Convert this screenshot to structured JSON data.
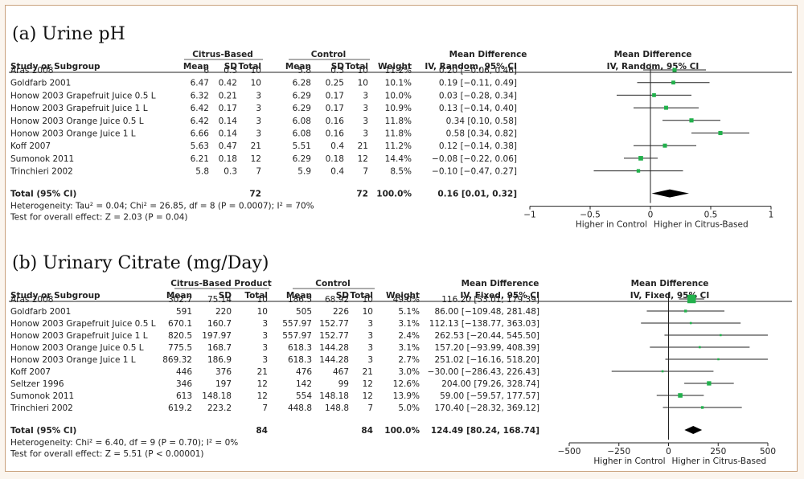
{
  "chart_data": [
    {
      "type": "forest",
      "title": "(a) Urine pH",
      "header": {
        "study": "Study or Subgroup",
        "group1": "Citrus-Based",
        "group2": "Control",
        "mean": "Mean",
        "sd": "SD",
        "total": "Total",
        "weight": "Weight",
        "md_title": "Mean Difference",
        "md_method": "IV, Random, 95% CI",
        "plot_title": "Mean Difference",
        "plot_method": "IV, Random, 95% CI"
      },
      "studies": [
        {
          "name": "Aras 2008",
          "m1": "6",
          "sd1": "0.3",
          "n1": "10",
          "m2": "5.8",
          "sd2": "0.3",
          "n2": "10",
          "weight": "11.2%",
          "ci": "0.20 [−0.06, 0.46]",
          "est": 0.2,
          "lo": -0.06,
          "hi": 0.46,
          "w": 11.2
        },
        {
          "name": "Goldfarb 2001",
          "m1": "6.47",
          "sd1": "0.42",
          "n1": "10",
          "m2": "6.28",
          "sd2": "0.25",
          "n2": "10",
          "weight": "10.1%",
          "ci": "0.19 [−0.11, 0.49]",
          "est": 0.19,
          "lo": -0.11,
          "hi": 0.49,
          "w": 10.1
        },
        {
          "name": "Honow 2003 Grapefruit Juice 0.5 L",
          "m1": "6.32",
          "sd1": "0.21",
          "n1": "3",
          "m2": "6.29",
          "sd2": "0.17",
          "n2": "3",
          "weight": "10.0%",
          "ci": "0.03 [−0.28, 0.34]",
          "est": 0.03,
          "lo": -0.28,
          "hi": 0.34,
          "w": 10.0
        },
        {
          "name": "Honow 2003 Grapefruit Juice 1 L",
          "m1": "6.42",
          "sd1": "0.17",
          "n1": "3",
          "m2": "6.29",
          "sd2": "0.17",
          "n2": "3",
          "weight": "10.9%",
          "ci": "0.13 [−0.14, 0.40]",
          "est": 0.13,
          "lo": -0.14,
          "hi": 0.4,
          "w": 10.9
        },
        {
          "name": "Honow 2003 Orange Juice 0.5 L",
          "m1": "6.42",
          "sd1": "0.14",
          "n1": "3",
          "m2": "6.08",
          "sd2": "0.16",
          "n2": "3",
          "weight": "11.8%",
          "ci": "0.34 [0.10, 0.58]",
          "est": 0.34,
          "lo": 0.1,
          "hi": 0.58,
          "w": 11.8
        },
        {
          "name": "Honow 2003 Orange Juice 1 L",
          "m1": "6.66",
          "sd1": "0.14",
          "n1": "3",
          "m2": "6.08",
          "sd2": "0.16",
          "n2": "3",
          "weight": "11.8%",
          "ci": "0.58 [0.34, 0.82]",
          "est": 0.58,
          "lo": 0.34,
          "hi": 0.82,
          "w": 11.8
        },
        {
          "name": "Koff 2007",
          "m1": "5.63",
          "sd1": "0.47",
          "n1": "21",
          "m2": "5.51",
          "sd2": "0.4",
          "n2": "21",
          "weight": "11.2%",
          "ci": "0.12 [−0.14, 0.38]",
          "est": 0.12,
          "lo": -0.14,
          "hi": 0.38,
          "w": 11.2
        },
        {
          "name": "Sumonok 2011",
          "m1": "6.21",
          "sd1": "0.18",
          "n1": "12",
          "m2": "6.29",
          "sd2": "0.18",
          "n2": "12",
          "weight": "14.4%",
          "ci": "−0.08 [−0.22, 0.06]",
          "est": -0.08,
          "lo": -0.22,
          "hi": 0.06,
          "w": 14.4
        },
        {
          "name": "Trinchieri 2002",
          "m1": "5.8",
          "sd1": "0.3",
          "n1": "7",
          "m2": "5.9",
          "sd2": "0.4",
          "n2": "7",
          "weight": "8.5%",
          "ci": "−0.10 [−0.47, 0.27]",
          "est": -0.1,
          "lo": -0.47,
          "hi": 0.27,
          "w": 8.5
        }
      ],
      "total": {
        "label": "Total (95% CI)",
        "n1": "72",
        "n2": "72",
        "weight": "100.0%",
        "ci": "0.16 [0.01, 0.32]",
        "est": 0.16,
        "lo": 0.01,
        "hi": 0.32
      },
      "heterogeneity": "Heterogeneity: Tau² = 0.04; Chi² = 26.85, df = 8 (P = 0.0007); I² = 70%",
      "overall_effect": "Test for overall effect: Z = 2.03 (P = 0.04)",
      "xlim": [
        -1,
        1
      ],
      "ticks": [
        -1,
        -0.5,
        0,
        0.5,
        1
      ],
      "tick_labels": [
        "−1",
        "−0.5",
        "0",
        "0.5",
        "1"
      ],
      "favours_left": "Higher in Control",
      "favours_right": "Higher in Citrus-Based"
    },
    {
      "type": "forest",
      "title": "(b) Urinary Citrate (mg/Day)",
      "header": {
        "study": "Study or Subgroup",
        "group1": "Citrus-Based Product",
        "group2": "Control",
        "mean": "Mean",
        "sd": "SD",
        "total": "Total",
        "weight": "Weight",
        "md_title": "Mean Difference",
        "md_method": "IV, Fixed, 95% CI",
        "plot_title": "Mean Difference",
        "plot_method": "IV, Fixed, 95% CI"
      },
      "studies": [
        {
          "name": "Aras 2008",
          "m1": "302.7",
          "sd1": "75.14",
          "n1": "10",
          "m2": "186.5",
          "sd2": "68.92",
          "n2": "10",
          "weight": "49.0%",
          "ci": "116.20 [53.01, 179.39]",
          "est": 116.2,
          "lo": 53.01,
          "hi": 179.39,
          "w": 49.0
        },
        {
          "name": "Goldfarb 2001",
          "m1": "591",
          "sd1": "220",
          "n1": "10",
          "m2": "505",
          "sd2": "226",
          "n2": "10",
          "weight": "5.1%",
          "ci": "86.00 [−109.48, 281.48]",
          "est": 86.0,
          "lo": -109.48,
          "hi": 281.48,
          "w": 5.1
        },
        {
          "name": "Honow 2003 Grapefruit Juice 0.5 L",
          "m1": "670.1",
          "sd1": "160.7",
          "n1": "3",
          "m2": "557.97",
          "sd2": "152.77",
          "n2": "3",
          "weight": "3.1%",
          "ci": "112.13 [−138.77, 363.03]",
          "est": 112.13,
          "lo": -138.77,
          "hi": 363.03,
          "w": 3.1
        },
        {
          "name": "Honow 2003 Grapefruit Juice 1 L",
          "m1": "820.5",
          "sd1": "197.97",
          "n1": "3",
          "m2": "557.97",
          "sd2": "152.77",
          "n2": "3",
          "weight": "2.4%",
          "ci": "262.53 [−20.44, 545.50]",
          "est": 262.53,
          "lo": -20.44,
          "hi": 545.5,
          "w": 2.4
        },
        {
          "name": "Honow 2003 Orange Juice 0.5 L",
          "m1": "775.5",
          "sd1": "168.7",
          "n1": "3",
          "m2": "618.3",
          "sd2": "144.28",
          "n2": "3",
          "weight": "3.1%",
          "ci": "157.20 [−93.99, 408.39]",
          "est": 157.2,
          "lo": -93.99,
          "hi": 408.39,
          "w": 3.1
        },
        {
          "name": "Honow 2003 Orange Juice 1 L",
          "m1": "869.32",
          "sd1": "186.9",
          "n1": "3",
          "m2": "618.3",
          "sd2": "144.28",
          "n2": "3",
          "weight": "2.7%",
          "ci": "251.02 [−16.16, 518.20]",
          "est": 251.02,
          "lo": -16.16,
          "hi": 518.2,
          "w": 2.7
        },
        {
          "name": "Koff 2007",
          "m1": "446",
          "sd1": "376",
          "n1": "21",
          "m2": "476",
          "sd2": "467",
          "n2": "21",
          "weight": "3.0%",
          "ci": "−30.00 [−286.43, 226.43]",
          "est": -30.0,
          "lo": -286.43,
          "hi": 226.43,
          "w": 3.0
        },
        {
          "name": "Seltzer 1996",
          "m1": "346",
          "sd1": "197",
          "n1": "12",
          "m2": "142",
          "sd2": "99",
          "n2": "12",
          "weight": "12.6%",
          "ci": "204.00 [79.26, 328.74]",
          "est": 204.0,
          "lo": 79.26,
          "hi": 328.74,
          "w": 12.6
        },
        {
          "name": "Sumonok 2011",
          "m1": "613",
          "sd1": "148.18",
          "n1": "12",
          "m2": "554",
          "sd2": "148.18",
          "n2": "12",
          "weight": "13.9%",
          "ci": "59.00 [−59.57, 177.57]",
          "est": 59.0,
          "lo": -59.57,
          "hi": 177.57,
          "w": 13.9
        },
        {
          "name": "Trinchieri 2002",
          "m1": "619.2",
          "sd1": "223.2",
          "n1": "7",
          "m2": "448.8",
          "sd2": "148.8",
          "n2": "7",
          "weight": "5.0%",
          "ci": "170.40 [−28.32, 369.12]",
          "est": 170.4,
          "lo": -28.32,
          "hi": 369.12,
          "w": 5.0
        }
      ],
      "total": {
        "label": "Total (95% CI)",
        "n1": "84",
        "n2": "84",
        "weight": "100.0%",
        "ci": "124.49 [80.24, 168.74]",
        "est": 124.49,
        "lo": 80.24,
        "hi": 168.74
      },
      "heterogeneity": "Heterogeneity: Chi² = 6.40, df = 9 (P = 0.70); I² = 0%",
      "overall_effect": "Test for overall effect: Z = 5.51 (P < 0.00001)",
      "xlim": [
        -500,
        500
      ],
      "ticks": [
        -500,
        -250,
        0,
        250,
        500
      ],
      "tick_labels": [
        "−500",
        "−250",
        "0",
        "250",
        "500"
      ],
      "favours_left": "Higher in Control",
      "favours_right": "Higher in Citrus-Based"
    }
  ],
  "colors": {
    "marker": "#22b14c",
    "line": "#222222",
    "diamond": "#000000",
    "border": "#c9a27e",
    "page": "#fbf5ee"
  }
}
